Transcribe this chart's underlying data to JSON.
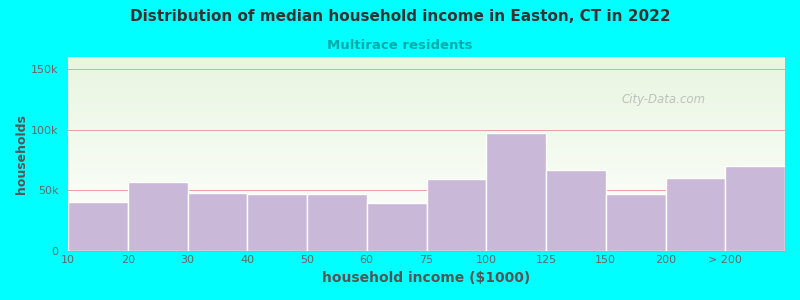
{
  "title": "Distribution of median household income in Easton, CT in 2022",
  "subtitle": "Multirace residents",
  "xlabel": "household income ($1000)",
  "ylabel": "households",
  "background_outer": "#00FFFF",
  "background_inner_top": "#e8f5e0",
  "background_inner_bottom": "#ffffff",
  "bar_color": "#c9b8d8",
  "bar_edge_color": "#ffffff",
  "title_color": "#333333",
  "subtitle_color": "#00AAAA",
  "axis_label_color": "#555555",
  "tick_color": "#666666",
  "grid_color": "#e8a0a0",
  "watermark": "City-Data.com",
  "categories": [
    "10",
    "20",
    "30",
    "40",
    "50",
    "60",
    "75",
    "100",
    "125",
    "150",
    "200",
    "> 200"
  ],
  "values": [
    40000,
    57000,
    48000,
    47000,
    47000,
    39000,
    59000,
    97000,
    67000,
    47000,
    60000,
    70000
  ],
  "ylim": [
    0,
    160000
  ],
  "yticks": [
    0,
    50000,
    100000,
    150000
  ],
  "ytick_labels": [
    "0",
    "50k",
    "100k",
    "150k"
  ]
}
